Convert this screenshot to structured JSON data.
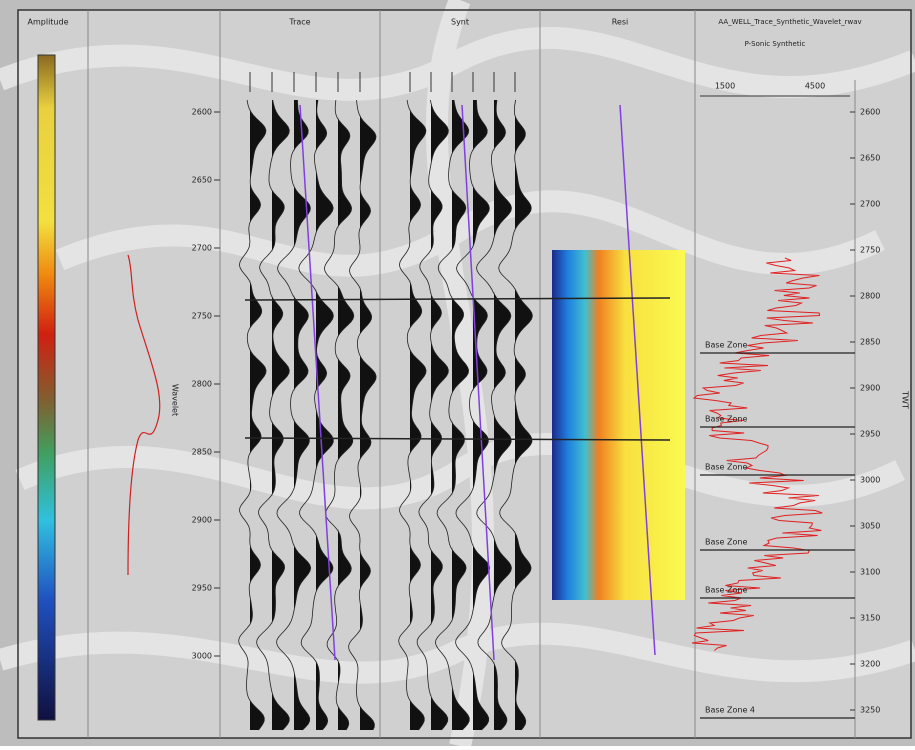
{
  "header": {
    "panels": [
      "Trace",
      "Synt",
      "Resi"
    ],
    "well": "AA_WELL_Trace_Synthetic_Wavelet_rwav",
    "log": "P-Sonic Synthetic"
  },
  "colorbar": {
    "title": "Amplitude"
  },
  "wavelet": {
    "label": "Wavelet"
  },
  "left_axis": {
    "labels": [
      "2600",
      "2650",
      "2700",
      "2750",
      "2800",
      "2850",
      "2900",
      "2950",
      "3000"
    ]
  },
  "log_axis": {
    "labels": [
      "1500",
      "4500"
    ]
  },
  "right_axis": {
    "labels": [
      "2600",
      "2650",
      "2700",
      "2750",
      "2800",
      "2850",
      "2900",
      "2950",
      "3000",
      "3050",
      "3100",
      "3150",
      "3200",
      "3250"
    ],
    "title": "TWT"
  },
  "zones": [
    "Base Zone",
    "Base Zone",
    "Base Zone",
    "Base Zone",
    "Base Zone",
    "Base Zone 4"
  ]
}
